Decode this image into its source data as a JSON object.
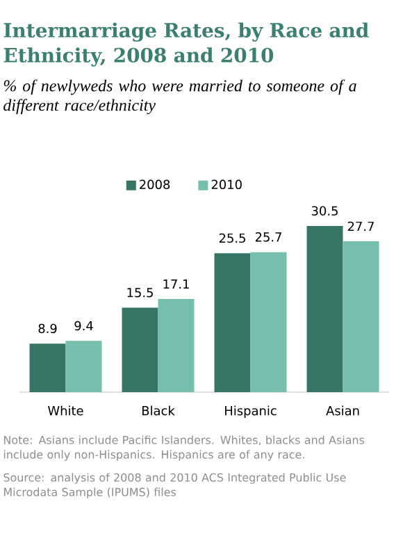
{
  "chart_data": {
    "type": "bar",
    "title": "Intermarriage Rates, by Race and Ethnicity, 2008 and 2010",
    "subtitle": "% of newlyweds who were married to someone of a different race/ethnicity",
    "categories": [
      "White",
      "Black",
      "Hispanic",
      "Asian"
    ],
    "series": [
      {
        "name": "2008",
        "color": "#367566",
        "values": [
          8.9,
          15.5,
          25.5,
          30.5
        ]
      },
      {
        "name": "2010",
        "color": "#76bfae",
        "values": [
          9.4,
          17.1,
          25.7,
          27.7
        ]
      }
    ],
    "data_labels": true,
    "legend": "top",
    "annotations": [
      "Note: Asians include Pacific Islanders. Whites, blacks and Asians include only non-Hispanics. Hispanics are of any race.",
      "Source: analysis of 2008 and 2010 ACS Integrated Public Use Microdata Sample (IPUMS) files"
    ]
  }
}
